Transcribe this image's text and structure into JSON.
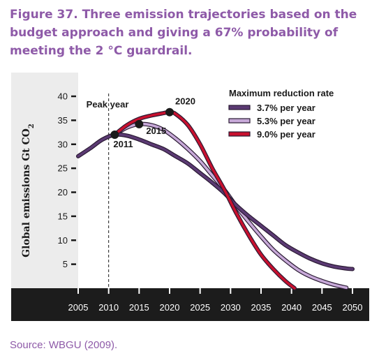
{
  "figure": {
    "title": "Figure 37. Three emission trajectories based on the budget approach and giving a 67% probability of meeting the 2 °C guardrail.",
    "source": "Source: WBGU (2009)."
  },
  "chart_data": {
    "type": "line",
    "xlabel": "",
    "ylabel": "Global emissions Gt CO2",
    "ylabel_main": "Global emissions Gt CO",
    "ylabel_sub": "2",
    "xlim": [
      2005,
      2050
    ],
    "ylim": [
      0,
      40
    ],
    "x_ticks": [
      2005,
      2010,
      2015,
      2020,
      2025,
      2030,
      2035,
      2040,
      2045,
      2050
    ],
    "y_ticks": [
      5,
      10,
      15,
      20,
      25,
      30,
      35,
      40
    ],
    "legend": {
      "title": "Maximum reduction rate",
      "position": "top-right"
    },
    "series": [
      {
        "name": "3.7% per year",
        "color": "#5b3a73",
        "points": [
          [
            2005,
            27.5
          ],
          [
            2007,
            29.2
          ],
          [
            2009,
            31.0
          ],
          [
            2011,
            32.0
          ],
          [
            2013,
            31.8
          ],
          [
            2015,
            31.0
          ],
          [
            2017,
            30.0
          ],
          [
            2019,
            29.0
          ],
          [
            2021,
            27.5
          ],
          [
            2023,
            26.0
          ],
          [
            2025,
            24.0
          ],
          [
            2027,
            22.0
          ],
          [
            2029,
            19.8
          ],
          [
            2031,
            17.2
          ],
          [
            2033,
            15.0
          ],
          [
            2035,
            13.0
          ],
          [
            2037,
            11.0
          ],
          [
            2039,
            9.0
          ],
          [
            2041,
            7.5
          ],
          [
            2043,
            6.2
          ],
          [
            2045,
            5.2
          ],
          [
            2047,
            4.5
          ],
          [
            2049,
            4.1
          ],
          [
            2050,
            4.0
          ]
        ]
      },
      {
        "name": "5.3% per year",
        "color": "#c7a9d8",
        "points": [
          [
            2011,
            32.0
          ],
          [
            2013,
            33.5
          ],
          [
            2015,
            34.2
          ],
          [
            2017,
            34.0
          ],
          [
            2019,
            33.0
          ],
          [
            2021,
            31.2
          ],
          [
            2023,
            29.0
          ],
          [
            2025,
            26.5
          ],
          [
            2027,
            23.5
          ],
          [
            2029,
            20.5
          ],
          [
            2031,
            17.0
          ],
          [
            2033,
            13.8
          ],
          [
            2035,
            10.8
          ],
          [
            2037,
            8.0
          ],
          [
            2039,
            5.8
          ],
          [
            2041,
            3.9
          ],
          [
            2043,
            2.5
          ],
          [
            2045,
            1.5
          ],
          [
            2047,
            0.7
          ],
          [
            2049,
            0.1
          ]
        ]
      },
      {
        "name": "9.0% per year",
        "color": "#c8102e",
        "points": [
          [
            2011,
            32.0
          ],
          [
            2013,
            34.0
          ],
          [
            2015,
            35.3
          ],
          [
            2017,
            36.0
          ],
          [
            2019,
            36.5
          ],
          [
            2020,
            36.7
          ],
          [
            2021,
            36.3
          ],
          [
            2023,
            34.0
          ],
          [
            2025,
            30.0
          ],
          [
            2027,
            25.0
          ],
          [
            2029,
            20.5
          ],
          [
            2031,
            15.5
          ],
          [
            2033,
            11.0
          ],
          [
            2035,
            7.0
          ],
          [
            2037,
            4.0
          ],
          [
            2039,
            1.5
          ],
          [
            2040.5,
            0.0
          ]
        ]
      }
    ],
    "markers": [
      {
        "label": "2011",
        "x": 2011,
        "y": 32.0
      },
      {
        "label": "2015",
        "x": 2015,
        "y": 34.2
      },
      {
        "label": "2020",
        "x": 2020,
        "y": 36.7
      }
    ],
    "peak_year_line": {
      "label": "Peak year",
      "x": 2010
    }
  }
}
